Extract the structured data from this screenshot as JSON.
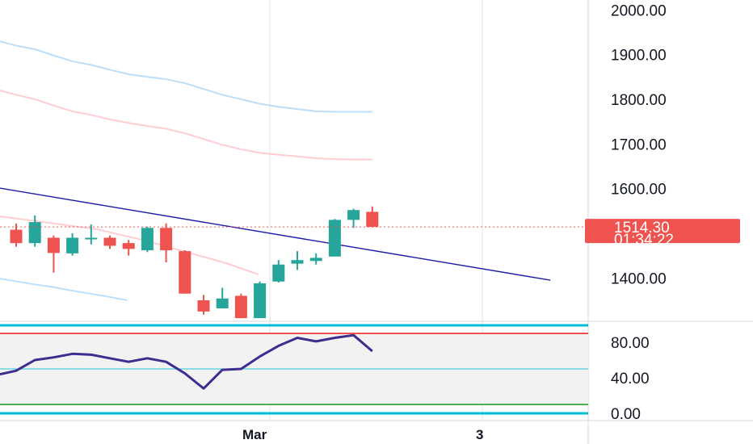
{
  "chart_data": {
    "type": "candlestick",
    "colors": {
      "up": "#26a69a",
      "down": "#ef5350",
      "trendline": "#1c1ca8",
      "upper_band": "#bbdefb",
      "lower_band": "#ffcdd2",
      "rsi_line": "#3d2d8f",
      "rsi_mid": "#26c6da",
      "rsi_high": "#ef5350",
      "rsi_low": "#4caf50",
      "rsi_bounds": "#00bcd4",
      "price_badge": "#ef5350",
      "grid": "#e0e3eb"
    },
    "price_axis": {
      "ticks": [
        "2000.00",
        "1900.00",
        "1800.00",
        "1700.00",
        "1600.00",
        "1400.00"
      ],
      "tick_values": [
        2000,
        1900,
        1800,
        1700,
        1600,
        1400
      ]
    },
    "last_price": {
      "price": "1514.30",
      "countdown": "01:34:22",
      "value": 1514.3
    },
    "time_axis": {
      "labels": [
        "Mar",
        "3"
      ]
    },
    "candles": [
      {
        "open": 1508,
        "high": 1522,
        "low": 1470,
        "close": 1478
      },
      {
        "open": 1478,
        "high": 1540,
        "low": 1470,
        "close": 1525
      },
      {
        "open": 1490,
        "high": 1495,
        "low": 1412,
        "close": 1456
      },
      {
        "open": 1455,
        "high": 1500,
        "low": 1450,
        "close": 1490
      },
      {
        "open": 1490,
        "high": 1520,
        "low": 1475,
        "close": 1490
      },
      {
        "open": 1490,
        "high": 1495,
        "low": 1465,
        "close": 1472
      },
      {
        "open": 1478,
        "high": 1485,
        "low": 1450,
        "close": 1465
      },
      {
        "open": 1462,
        "high": 1515,
        "low": 1458,
        "close": 1512
      },
      {
        "open": 1512,
        "high": 1522,
        "low": 1435,
        "close": 1462
      },
      {
        "open": 1460,
        "high": 1462,
        "low": 1365,
        "close": 1365
      },
      {
        "open": 1350,
        "high": 1362,
        "low": 1318,
        "close": 1325
      },
      {
        "open": 1332,
        "high": 1378,
        "low": 1332,
        "close": 1354
      },
      {
        "open": 1360,
        "high": 1365,
        "low": 1310,
        "close": 1310
      },
      {
        "open": 1310,
        "high": 1392,
        "low": 1310,
        "close": 1388
      },
      {
        "open": 1392,
        "high": 1440,
        "low": 1390,
        "close": 1430
      },
      {
        "open": 1432,
        "high": 1460,
        "low": 1418,
        "close": 1440
      },
      {
        "open": 1438,
        "high": 1455,
        "low": 1430,
        "close": 1445
      },
      {
        "open": 1448,
        "high": 1532,
        "low": 1448,
        "close": 1530
      },
      {
        "open": 1530,
        "high": 1555,
        "low": 1512,
        "close": 1552
      },
      {
        "open": 1548,
        "high": 1560,
        "low": 1514,
        "close": 1514.3
      }
    ],
    "upper_band": [
      1920,
      1912,
      1898,
      1885,
      1877,
      1866,
      1856,
      1850,
      1845,
      1836,
      1823,
      1810,
      1800,
      1790,
      1783,
      1778,
      1773,
      1772,
      1772,
      1772
    ],
    "lower_band": [
      1810,
      1800,
      1786,
      1773,
      1765,
      1755,
      1747,
      1740,
      1734,
      1724,
      1711,
      1698,
      1688,
      1680,
      1676,
      1672,
      1668,
      1666,
      1665,
      1665
    ],
    "trendline": {
      "start": [
        -1,
        1602
      ],
      "end": [
        28.5,
        1395
      ]
    },
    "lower_curve": [
      1400,
      1393,
      1386,
      1380,
      1372,
      1365,
      1358,
      1350
    ],
    "rsi": {
      "ticks": [
        "80.00",
        "40.00",
        "0.00"
      ],
      "tick_values": [
        80,
        40,
        0
      ],
      "values": [
        48,
        60,
        63,
        67,
        66,
        62,
        58,
        62,
        58,
        45,
        28,
        49,
        50,
        64,
        76,
        85,
        81,
        85,
        88,
        70
      ],
      "upper_level": 90,
      "middle_level": 50,
      "lower_level": 10
    }
  }
}
